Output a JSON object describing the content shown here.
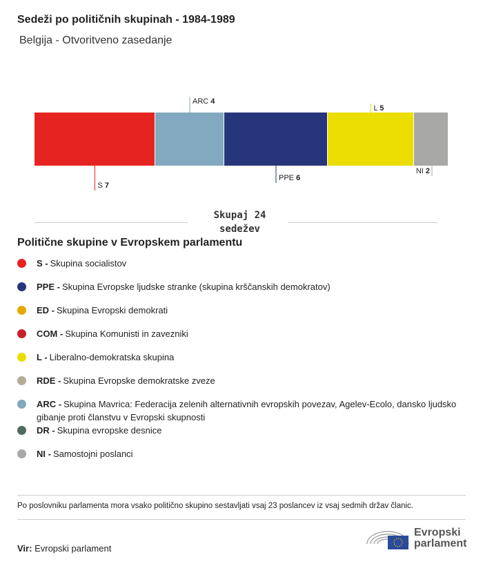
{
  "title": "Sedeži po političnih skupinah - 1984-1989",
  "subtitle": "Belgija - Otvoritveno zasedanje",
  "chart_data": {
    "type": "bar",
    "orientation": "stacked-horizontal",
    "categories": [
      "S",
      "ARC",
      "PPE",
      "L",
      "NI"
    ],
    "values": [
      7,
      4,
      6,
      5,
      2
    ],
    "colors": [
      "#e52421",
      "#82a9bf",
      "#27367a",
      "#ebdd00",
      "#a8a8a7"
    ],
    "total": 24
  },
  "total_label": "Skupaj 24",
  "total_unit": "sedežev",
  "legend_title": "Politične skupine v Evropskem parlamentu",
  "legend": [
    {
      "abbr": "S -",
      "name": "Skupina socialistov",
      "color": "#e52421"
    },
    {
      "abbr": "PPE -",
      "name": "Skupina Evropske ljudske stranke (skupina krščanskih demokratov)",
      "color": "#27367a"
    },
    {
      "abbr": "ED -",
      "name": "Skupina Evropski demokrati",
      "color": "#eaa600"
    },
    {
      "abbr": "COM -",
      "name": "Skupina Komunisti in zavezniki",
      "color": "#c8202a"
    },
    {
      "abbr": "L -",
      "name": "Liberalno-demokratska skupina",
      "color": "#ebdd00"
    },
    {
      "abbr": "RDE -",
      "name": "Skupina Evropske demokratske zveze",
      "color": "#b5aa9a"
    },
    {
      "abbr": "ARC -",
      "name": "Skupina Mavrica: Federacija zelenih alternativnih evropskih povezav, Agelev-Ecolo, dansko ljudsko gibanje proti članstvu v Evropski skupnosti",
      "color": "#82a9bf"
    },
    {
      "abbr": "DR -",
      "name": "Skupina evropske desnice",
      "color": "#506b5e"
    },
    {
      "abbr": "NI -",
      "name": "Samostojni poslanci",
      "color": "#a8a8a7"
    }
  ],
  "note": "Po poslovniku parlamenta mora vsako politično skupino sestavljati vsaj 23 poslancev iz vsaj sedmih držav članic.",
  "source_label": "Vir:",
  "source": "Evropski parlament",
  "logo": {
    "line1": "Evropski",
    "line2": "parlament"
  }
}
